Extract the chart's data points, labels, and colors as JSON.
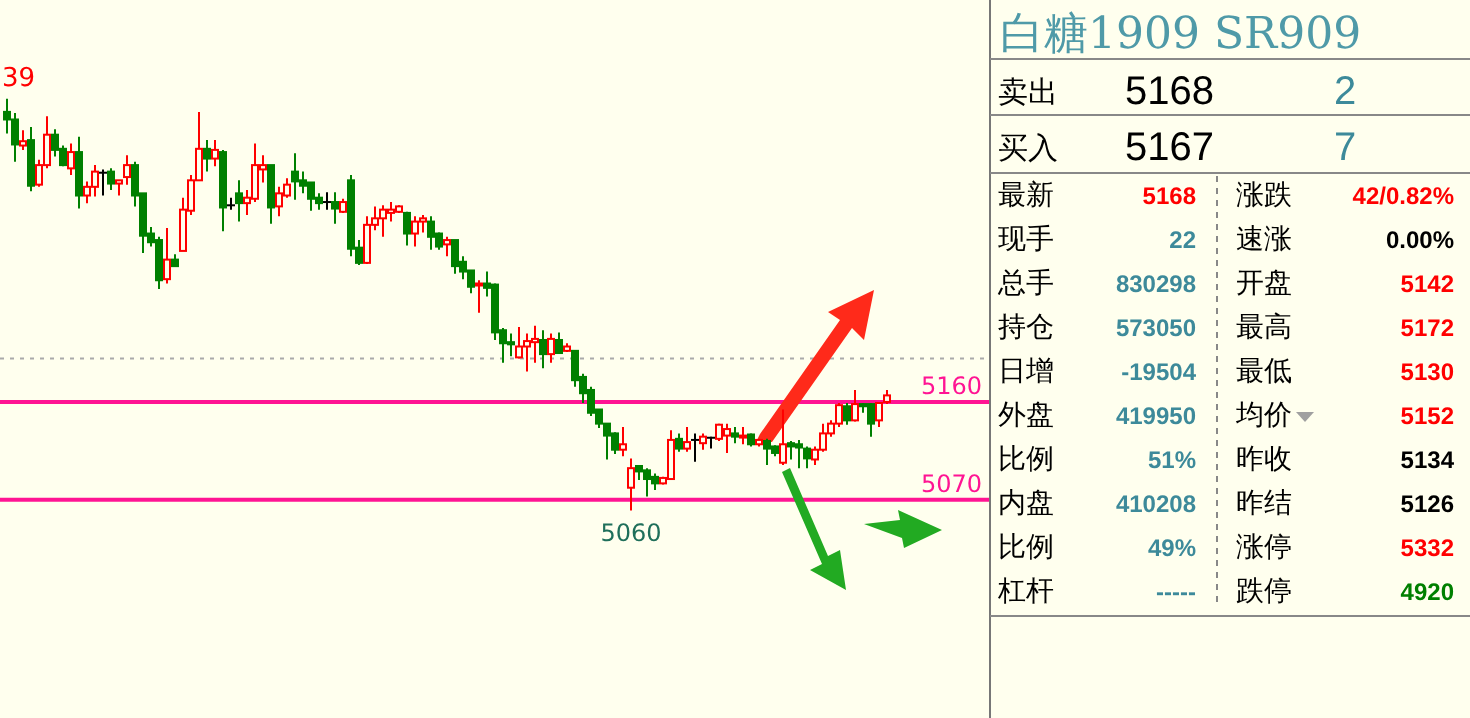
{
  "chart_data": [
    {
      "type": "candlestick",
      "categories": [
        null,
        null,
        null,
        null,
        null,
        null,
        null,
        null,
        null,
        null,
        null,
        null,
        null,
        null,
        null,
        null,
        null,
        null,
        null,
        null,
        null,
        null,
        null,
        null,
        null,
        null,
        null,
        null,
        null,
        null,
        null,
        null,
        null,
        null,
        null,
        null,
        null,
        null,
        null,
        null,
        null,
        null,
        null,
        null,
        null,
        null,
        null,
        null,
        null,
        null,
        null,
        null,
        null,
        null,
        null,
        null,
        null,
        null,
        null,
        null,
        null,
        null,
        null,
        null,
        null,
        null,
        null,
        null,
        null,
        null,
        null,
        null,
        null,
        null,
        null,
        null,
        null,
        null,
        null,
        null,
        null,
        null,
        null,
        null,
        null,
        null,
        null,
        null,
        null,
        null,
        null,
        null,
        null,
        null,
        null,
        null,
        null,
        null,
        null,
        null,
        null,
        null,
        null,
        null,
        null,
        null,
        null,
        null,
        null,
        null,
        null
      ],
      "ohlc": [
        [
          5427,
          5439,
          5407,
          5420
        ],
        [
          5420,
          5426,
          5381,
          5397
        ],
        [
          5396,
          5410,
          5392,
          5400
        ],
        [
          5401,
          5413,
          5354,
          5359
        ],
        [
          5360,
          5383,
          5358,
          5378
        ],
        [
          5378,
          5423,
          5375,
          5406
        ],
        [
          5406,
          5411,
          5386,
          5392
        ],
        [
          5393,
          5396,
          5377,
          5378
        ],
        [
          5375,
          5398,
          5369,
          5390
        ],
        [
          5390,
          5404,
          5338,
          5350
        ],
        [
          5350,
          5363,
          5343,
          5358
        ],
        [
          5358,
          5378,
          5349,
          5372
        ],
        [
          5371,
          5374,
          5350,
          5371
        ],
        [
          5372,
          5375,
          5355,
          5361
        ],
        [
          5361,
          5364,
          5350,
          5364
        ],
        [
          5367,
          5387,
          5360,
          5378
        ],
        [
          5378,
          5381,
          5340,
          5350
        ],
        [
          5352,
          5352,
          5297,
          5313
        ],
        [
          5315,
          5321,
          5303,
          5307
        ],
        [
          5309,
          5312,
          5264,
          5272
        ],
        [
          5273,
          5320,
          5269,
          5291
        ],
        [
          5291,
          5296,
          5285,
          5285
        ],
        [
          5299,
          5348,
          5299,
          5337
        ],
        [
          5336,
          5369,
          5332,
          5364
        ],
        [
          5364,
          5427,
          5364,
          5393
        ],
        [
          5393,
          5401,
          5372,
          5384
        ],
        [
          5384,
          5401,
          5377,
          5392
        ],
        [
          5390,
          5392,
          5317,
          5339
        ],
        [
          5341,
          5348,
          5337,
          5341
        ],
        [
          5352,
          5364,
          5326,
          5343
        ],
        [
          5343,
          5355,
          5332,
          5348
        ],
        [
          5347,
          5398,
          5344,
          5378
        ],
        [
          5374,
          5387,
          5362,
          5378
        ],
        [
          5378,
          5378,
          5324,
          5339
        ],
        [
          5340,
          5358,
          5331,
          5352
        ],
        [
          5350,
          5366,
          5348,
          5360
        ],
        [
          5372,
          5389,
          5346,
          5363
        ],
        [
          5364,
          5372,
          5352,
          5359
        ],
        [
          5362,
          5362,
          5336,
          5347
        ],
        [
          5348,
          5352,
          5337,
          5343
        ],
        [
          5344,
          5353,
          5337,
          5344
        ],
        [
          5344,
          5353,
          5324,
          5338
        ],
        [
          5335,
          5347,
          5334,
          5344
        ],
        [
          5364,
          5369,
          5294,
          5301
        ],
        [
          5302,
          5309,
          5286,
          5288
        ],
        [
          5288,
          5331,
          5287,
          5323
        ],
        [
          5323,
          5340,
          5318,
          5329
        ],
        [
          5329,
          5341,
          5312,
          5337
        ],
        [
          5334,
          5344,
          5326,
          5337
        ],
        [
          5335,
          5341,
          5334,
          5340
        ],
        [
          5334,
          5335,
          5304,
          5315
        ],
        [
          5315,
          5331,
          5303,
          5326
        ],
        [
          5326,
          5332,
          5316,
          5329
        ],
        [
          5326,
          5331,
          5300,
          5312
        ],
        [
          5315,
          5316,
          5300,
          5303
        ],
        [
          5305,
          5312,
          5294,
          5309
        ],
        [
          5309,
          5309,
          5278,
          5285
        ],
        [
          5289,
          5294,
          5273,
          5280
        ],
        [
          5281,
          5281,
          5260,
          5266
        ],
        [
          5268,
          5272,
          5242,
          5269
        ],
        [
          5269,
          5280,
          5257,
          5265
        ],
        [
          5268,
          5269,
          5217,
          5224
        ],
        [
          5226,
          5228,
          5196,
          5214
        ],
        [
          5215,
          5223,
          5202,
          5213
        ],
        [
          5201,
          5229,
          5200,
          5211
        ],
        [
          5211,
          5223,
          5188,
          5216
        ],
        [
          5215,
          5230,
          5196,
          5218
        ],
        [
          5217,
          5226,
          5191,
          5204
        ],
        [
          5204,
          5223,
          5196,
          5218
        ],
        [
          5217,
          5224,
          5204,
          5205
        ],
        [
          5207,
          5214,
          5206,
          5211
        ],
        [
          5207,
          5207,
          5174,
          5180
        ],
        [
          5183,
          5186,
          5159,
          5168
        ],
        [
          5171,
          5174,
          5147,
          5150
        ],
        [
          5153,
          5153,
          5136,
          5140
        ],
        [
          5140,
          5140,
          5107,
          5129
        ],
        [
          5131,
          5132,
          5112,
          5116
        ],
        [
          5116,
          5137,
          5110,
          5121
        ],
        [
          5081,
          5108,
          5060,
          5099
        ],
        [
          5101,
          5102,
          5088,
          5096
        ],
        [
          5097,
          5099,
          5073,
          5089
        ],
        [
          5091,
          5094,
          5079,
          5085
        ],
        [
          5085,
          5091,
          5084,
          5090
        ],
        [
          5089,
          5134,
          5088,
          5125
        ],
        [
          5126,
          5131,
          5114,
          5117
        ],
        [
          5117,
          5137,
          5114,
          5123
        ],
        [
          5125,
          5131,
          5105,
          5125
        ],
        [
          5122,
          5131,
          5116,
          5128
        ],
        [
          5127,
          5128,
          5117,
          5127
        ],
        [
          5126,
          5140,
          5124,
          5139
        ],
        [
          5129,
          5140,
          5113,
          5135
        ],
        [
          5131,
          5137,
          5122,
          5128
        ],
        [
          5128,
          5137,
          5121,
          5129
        ],
        [
          5130,
          5131,
          5119,
          5121
        ],
        [
          5121,
          5125,
          5119,
          5125
        ],
        [
          5124,
          5126,
          5102,
          5117
        ],
        [
          5119,
          5120,
          5110,
          5113
        ],
        [
          5104,
          5153,
          5102,
          5121
        ],
        [
          5122,
          5124,
          5107,
          5119
        ],
        [
          5121,
          5125,
          5099,
          5118
        ],
        [
          5117,
          5119,
          5099,
          5108
        ],
        [
          5107,
          5119,
          5102,
          5116
        ],
        [
          5116,
          5140,
          5114,
          5131
        ],
        [
          5131,
          5143,
          5128,
          5140
        ],
        [
          5140,
          5159,
          5137,
          5157
        ],
        [
          5156,
          5159,
          5139,
          5143
        ],
        [
          5143,
          5171,
          5142,
          5158
        ],
        [
          5158,
          5159,
          5150,
          5156
        ],
        [
          5158,
          5159,
          5128,
          5140
        ],
        [
          5143,
          5160,
          5137,
          5159
        ],
        [
          5160,
          5171,
          5158,
          5166
        ]
      ],
      "ylim": [
        4869,
        5530
      ],
      "ref_lines": [
        {
          "axis": "y",
          "value": 5160,
          "label": "5160",
          "color": "#ff1493"
        },
        {
          "axis": "y",
          "value": 5070,
          "label": "5070",
          "color": "#ff1493"
        },
        {
          "axis": "y",
          "value": 5200,
          "color": "#aaaaaa",
          "line_style": "dotted"
        }
      ],
      "annotations": [
        "39",
        {
          "text": "5060",
          "y": 5060
        }
      ]
    },
    {
      "type": "other",
      "title": "白糖1909  SR909",
      "annotations": [
        "卖出",
        "5168",
        "2",
        "买入",
        "5167",
        "7",
        "最新",
        "5168",
        "涨跌",
        "42/0.82%",
        "现手",
        "22",
        "速涨",
        "0.00%",
        "总手",
        "830298",
        "开盘",
        "5142",
        "持仓",
        "573050",
        "最高",
        "5172",
        "日增",
        "-19504",
        "最低",
        "5130",
        "外盘",
        "419950",
        "均价",
        "5152",
        "比例",
        "51%",
        "昨收",
        "5134",
        "内盘",
        "410208",
        "昨结",
        "5126",
        "比例",
        "49%",
        "涨停",
        "5332",
        "杠杆",
        "-----",
        "跌停",
        "4920"
      ]
    }
  ]
}
